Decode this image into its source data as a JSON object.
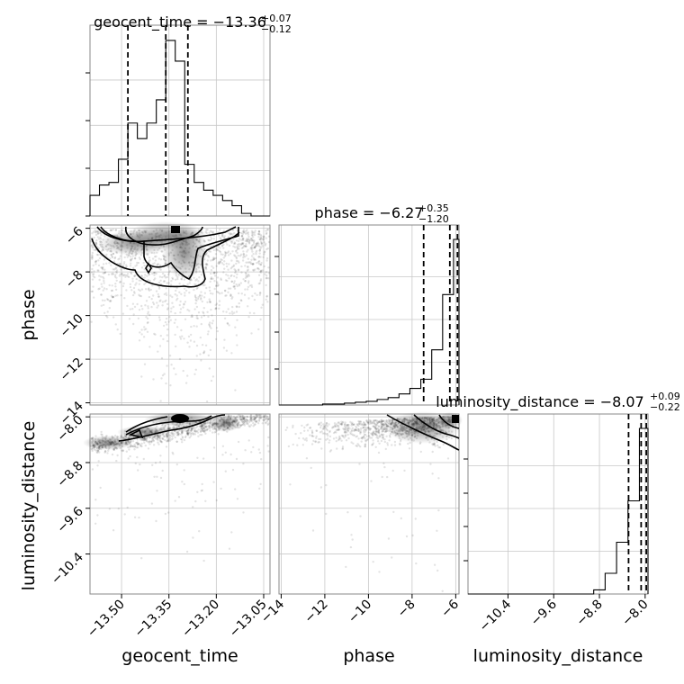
{
  "chart_data": {
    "type": "corner",
    "parameters": [
      "geocent_time",
      "phase",
      "luminosity_distance"
    ],
    "titles": [
      {
        "param": "geocent_time",
        "prefix": "geocent_time = ",
        "median": "−13.36",
        "upper": "+0.07",
        "lower": "−0.12"
      },
      {
        "param": "phase",
        "prefix": "phase = ",
        "median": "−6.27",
        "upper": "+0.35",
        "lower": "−1.20"
      },
      {
        "param": "luminosity_distance",
        "prefix": "luminosity_distance = ",
        "median": "−8.07",
        "upper": "+0.09",
        "lower": "−0.22"
      }
    ],
    "axis_labels": {
      "x": [
        "geocent_time",
        "phase",
        "luminosity_distance"
      ],
      "y": [
        "phase",
        "luminosity_distance"
      ]
    },
    "grid": true,
    "params": {
      "geocent_time": {
        "range": [
          -13.6,
          -13.03
        ],
        "ticks": [
          -13.5,
          -13.35,
          -13.2,
          -13.05
        ],
        "tick_labels": [
          "−13.50",
          "−13.35",
          "−13.20",
          "−13.05"
        ],
        "quantiles": [
          -13.48,
          -13.36,
          -13.29
        ],
        "hist": {
          "edges": [
            -13.6,
            -13.57,
            -13.54,
            -13.51,
            -13.48,
            -13.45,
            -13.42,
            -13.39,
            -13.36,
            -13.33,
            -13.3,
            -13.27,
            -13.24,
            -13.21,
            -13.18,
            -13.15,
            -13.12,
            -13.09,
            -13.06,
            -13.03
          ],
          "counts": [
            8,
            12,
            13,
            22,
            36,
            30,
            36,
            45,
            68,
            60,
            20,
            13,
            10,
            8,
            6,
            4,
            1,
            0,
            0
          ]
        }
      },
      "phase": {
        "range": [
          -14.1,
          -5.85
        ],
        "ticks": [
          -14,
          -12,
          -10,
          -8,
          -6
        ],
        "tick_labels": [
          "−14",
          "−12",
          "−10",
          "−8",
          "−6"
        ],
        "quantiles": [
          -7.47,
          -6.27,
          -5.92
        ],
        "hist": {
          "edges": [
            -14.1,
            -13.6,
            -13.1,
            -12.6,
            -12.1,
            -11.6,
            -11.1,
            -10.6,
            -10.1,
            -9.6,
            -9.1,
            -8.6,
            -8.1,
            -7.6,
            -7.1,
            -6.6,
            -6.1,
            -5.85
          ],
          "counts": [
            0,
            0,
            0,
            0,
            1,
            1,
            2,
            3,
            4,
            6,
            8,
            12,
            18,
            28,
            60,
            120,
            180
          ]
        }
      },
      "luminosity_distance": {
        "range": [
          -11.1,
          -7.95
        ],
        "ticks": [
          -10.4,
          -9.6,
          -8.8,
          -8.0
        ],
        "tick_labels": [
          "−10.4",
          "−9.6",
          "−8.8",
          "−8.0"
        ],
        "quantiles": [
          -8.29,
          -8.07,
          -7.98
        ],
        "hist": {
          "edges": [
            -11.1,
            -10.9,
            -10.7,
            -10.5,
            -10.3,
            -10.1,
            -9.9,
            -9.7,
            -9.5,
            -9.3,
            -9.1,
            -8.9,
            -8.7,
            -8.5,
            -8.3,
            -8.1,
            -7.95
          ],
          "counts": [
            0,
            0,
            0,
            0,
            0,
            0,
            0,
            0,
            0,
            0,
            0,
            2,
            10,
            25,
            45,
            80
          ]
        }
      }
    }
  }
}
